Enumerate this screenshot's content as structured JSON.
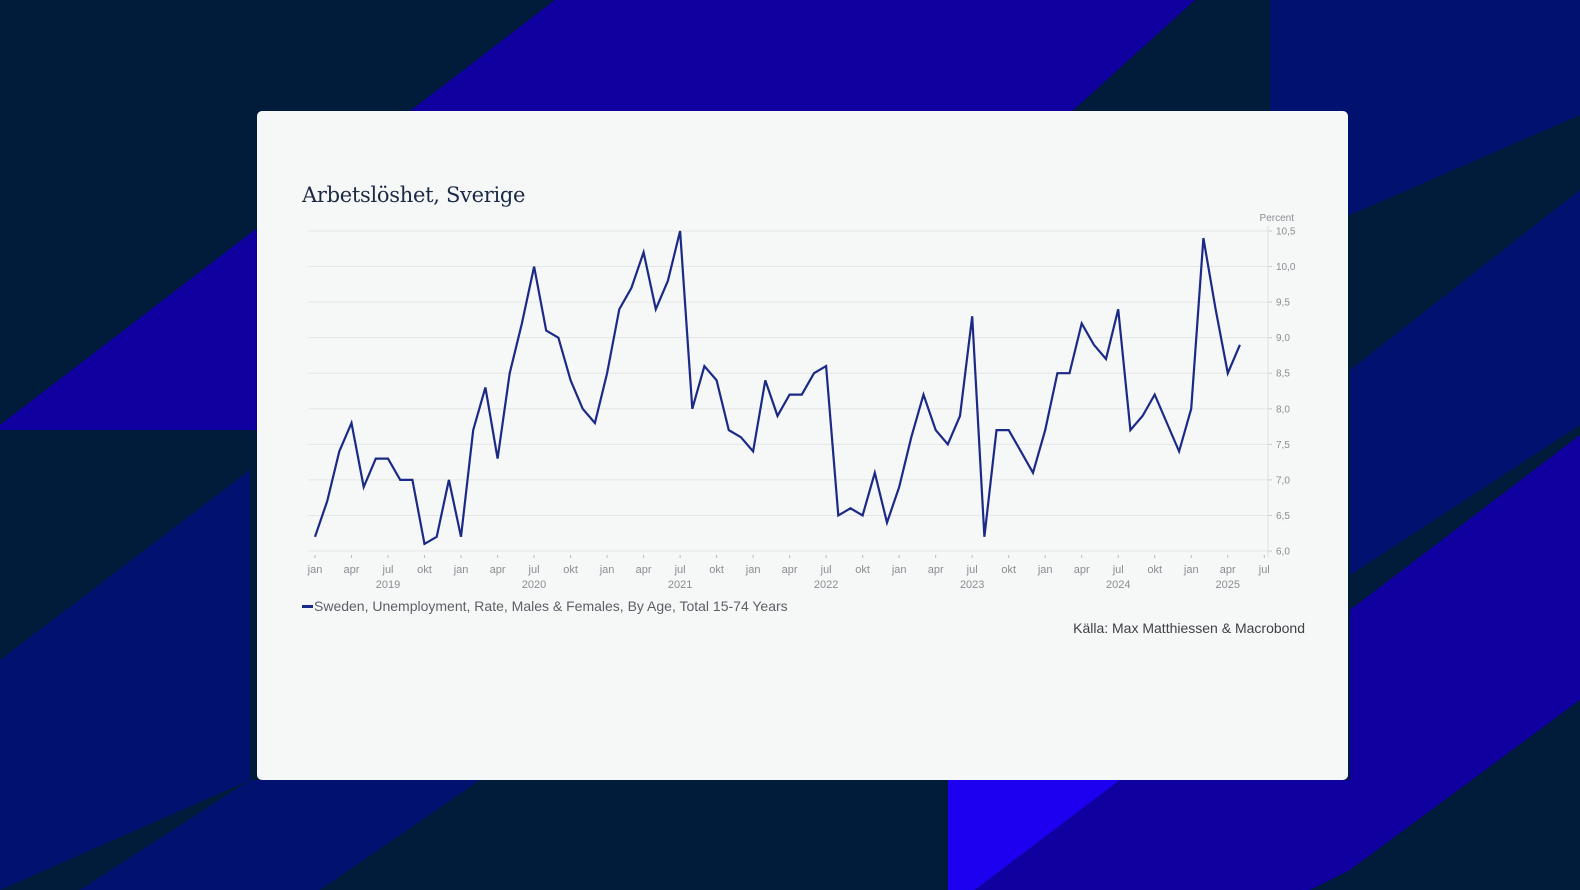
{
  "colors": {
    "background_dark": "#001c3a",
    "background_blue": "#10009f",
    "background_navy": "#011170",
    "background_bright": "#1d00f0",
    "card": "#f6f7f7",
    "line": "#1a2a86",
    "grid": "#e5e6e7"
  },
  "chart_data": {
    "type": "line",
    "title": "Arbetslöshet, Sverige",
    "ylabel": "Percent",
    "xlabel": "",
    "ylim": [
      6.0,
      10.5
    ],
    "yticks": [
      "10,5",
      "10,0",
      "9,5",
      "9,0",
      "8,5",
      "8,0",
      "7,5",
      "7,0",
      "6,5",
      "6,0"
    ],
    "ytick_values": [
      10.5,
      10.0,
      9.5,
      9.0,
      8.5,
      8.0,
      7.5,
      7.0,
      6.5,
      6.0
    ],
    "y_axis_position": "right",
    "grid": true,
    "x_start": "2019-01",
    "x_end": "2025-07",
    "x_month_ticks": [
      "jan",
      "apr",
      "jul",
      "okt",
      "jan",
      "apr",
      "jul",
      "okt",
      "jan",
      "apr",
      "jul",
      "okt",
      "jan",
      "apr",
      "jul",
      "okt",
      "jan",
      "apr",
      "jul",
      "okt",
      "jan",
      "apr",
      "jul",
      "okt",
      "jan",
      "apr",
      "jul"
    ],
    "x_year_labels": [
      "2019",
      "2020",
      "2021",
      "2022",
      "2023",
      "2024",
      "2025"
    ],
    "legend_position": "bottom-left",
    "series": [
      {
        "name": "Sweden, Unemployment, Rate, Males & Females, By Age, Total 15-74 Years",
        "values": [
          6.2,
          6.7,
          7.4,
          7.8,
          6.9,
          7.3,
          7.3,
          7.0,
          7.0,
          6.1,
          6.2,
          7.0,
          6.2,
          7.7,
          8.3,
          7.3,
          8.5,
          9.2,
          10.0,
          9.1,
          9.0,
          8.4,
          8.0,
          7.8,
          8.5,
          9.4,
          9.7,
          10.2,
          9.4,
          9.8,
          10.5,
          8.0,
          8.6,
          8.4,
          7.7,
          7.6,
          7.4,
          8.4,
          7.9,
          8.2,
          8.2,
          8.5,
          8.6,
          6.5,
          6.6,
          6.5,
          7.1,
          6.4,
          6.9,
          7.6,
          8.2,
          7.7,
          7.5,
          7.9,
          9.3,
          6.2,
          7.7,
          7.7,
          7.4,
          7.1,
          7.7,
          8.5,
          8.5,
          9.2,
          8.9,
          8.7,
          9.4,
          7.7,
          7.9,
          8.2,
          7.8,
          7.4,
          8.0,
          10.4,
          9.4,
          8.5,
          8.9
        ]
      }
    ],
    "source": "Källa: Max Matthiessen & Macrobond"
  }
}
